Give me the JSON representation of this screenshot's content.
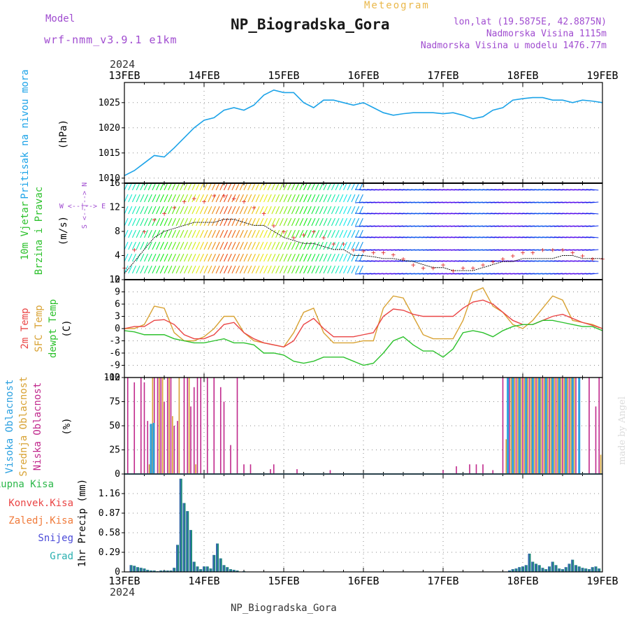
{
  "header": {
    "model_label": "Model",
    "model_name": "wrf-nmm_v3.9.1 e1km",
    "meteogram_label": "Meteogram",
    "station_title": "NP_Biogradska_Gora",
    "lonlat": "lon,lat (19.5875E, 42.8875N)",
    "altitude": "Nadmorska Visina 1115m",
    "model_altitude": "Nadmorska Visina u modelu 1476.77m",
    "year_top": "2024",
    "footer_title": "NP_Biogradska_Gora",
    "year_bottom": "2024",
    "credit": "made by Angel"
  },
  "colors": {
    "pressure": "#1ca3e8",
    "temp2m": "#ea4545",
    "sfc": "#d8a233",
    "dewpt": "#2cc12c",
    "high_cloud": "#2ba0e0",
    "mid_cloud": "#d8a233",
    "low_cloud": "#c0288c",
    "precip_total": "#2cb84a",
    "snow": "#4a4ad8",
    "graupel": "#2ab0b0",
    "model_text": "#a04cd0"
  },
  "chart_data": [
    {
      "id": "pressure",
      "type": "line",
      "ylabel": [
        "Pritisak na nivou mora",
        "(hPa)"
      ],
      "ylim": [
        1009,
        1029
      ],
      "yticks": [
        1010,
        1015,
        1020,
        1025
      ],
      "xlim": [
        0,
        144
      ],
      "x_tick_labels": [
        "13FEB",
        "14FEB",
        "15FEB",
        "16FEB",
        "17FEB",
        "18FEB",
        "19FEB"
      ],
      "grid": true,
      "series": [
        {
          "key": "pressure",
          "x": [
            0,
            3,
            6,
            9,
            12,
            15,
            18,
            21,
            24,
            27,
            30,
            33,
            36,
            39,
            42,
            45,
            48,
            51,
            54,
            57,
            60,
            63,
            66,
            69,
            72,
            75,
            78,
            81,
            84,
            87,
            90,
            93,
            96,
            99,
            102,
            105,
            108,
            111,
            114,
            117,
            120,
            123,
            126,
            129,
            132,
            135,
            138,
            141,
            144
          ],
          "y": [
            1010.5,
            1011.5,
            1013,
            1014.5,
            1014.2,
            1016,
            1018,
            1020,
            1021.5,
            1022,
            1023.5,
            1024,
            1023.5,
            1024.5,
            1026.5,
            1027.5,
            1027,
            1027,
            1025,
            1024,
            1025.5,
            1025.5,
            1025,
            1024.5,
            1025,
            1024,
            1023,
            1022.5,
            1022.8,
            1023,
            1023,
            1023,
            1022.8,
            1023,
            1022.5,
            1021.8,
            1022.2,
            1023.5,
            1024,
            1025.5,
            1025.8,
            1026,
            1026,
            1025.5,
            1025.5,
            1025,
            1025.5,
            1025.3,
            1025
          ]
        }
      ]
    },
    {
      "id": "wind",
      "type": "barbs",
      "ylabel": [
        "10m Vjetar",
        "Brzina i Pravac",
        "(m/s)"
      ],
      "ylim": [
        0,
        16
      ],
      "yticks": [
        0,
        4,
        8,
        12,
        16
      ],
      "xlim": [
        0,
        144
      ],
      "compass_label": "W <--|--> E",
      "compass_label_vertical": "S <--|--> N",
      "series": [
        {
          "name": "wind speed",
          "x": [
            0,
            3,
            6,
            9,
            12,
            15,
            18,
            21,
            24,
            27,
            30,
            33,
            36,
            39,
            42,
            45,
            48,
            51,
            54,
            57,
            60,
            63,
            66,
            69,
            72,
            75,
            78,
            81,
            84,
            87,
            90,
            93,
            96,
            99,
            102,
            105,
            108,
            111,
            114,
            117,
            120,
            123,
            126,
            129,
            132,
            135,
            138,
            141,
            144
          ],
          "y": [
            1,
            3,
            5,
            7,
            8,
            8.5,
            9,
            9.5,
            9.5,
            9.5,
            10,
            10,
            9.5,
            9,
            9,
            8,
            7,
            6.5,
            6,
            6,
            5.5,
            5,
            5,
            4,
            4,
            3.8,
            3.5,
            3.5,
            3.2,
            3,
            2.5,
            2,
            2,
            1.5,
            1.5,
            1.5,
            2,
            2.5,
            3,
            3,
            3.5,
            3.5,
            3.5,
            3.5,
            4,
            4,
            3.5,
            3.5,
            3.5
          ]
        },
        {
          "name": "gust",
          "x": [
            0,
            3,
            6,
            9,
            12,
            15,
            18,
            21,
            24,
            27,
            30,
            33,
            36,
            39,
            42,
            45,
            48,
            51,
            54,
            57,
            60,
            63,
            66,
            69,
            72,
            75,
            78,
            81,
            84,
            87,
            90,
            93,
            96,
            99,
            102,
            105,
            108,
            111,
            114,
            117,
            120,
            123,
            126,
            129,
            132,
            135,
            138,
            141,
            144
          ],
          "y": [
            2,
            5,
            8,
            10,
            11,
            12,
            13,
            13.5,
            13,
            14,
            14,
            13.5,
            13,
            12,
            11,
            9,
            8,
            7,
            7.5,
            8,
            7,
            6,
            6,
            5,
            4.8,
            4.5,
            4.5,
            4.2,
            3.5,
            2.5,
            2,
            2,
            2.5,
            1.5,
            2,
            2,
            2.5,
            3,
            3.5,
            4,
            4.5,
            4.5,
            5,
            5,
            5,
            4.5,
            4,
            3.5,
            3.5
          ]
        }
      ]
    },
    {
      "id": "temperature",
      "type": "line",
      "ylabel": [
        "2m Temp",
        "SFC Temp",
        "dewpt Temp",
        "(C)"
      ],
      "ylim": [
        -12,
        12
      ],
      "yticks": [
        -12,
        -9,
        -6,
        -3,
        0,
        3,
        6,
        9,
        12
      ],
      "xlim": [
        0,
        144
      ],
      "grid": true,
      "series": [
        {
          "key": "sfc",
          "x": [
            0,
            3,
            6,
            9,
            12,
            15,
            18,
            21,
            24,
            27,
            30,
            33,
            36,
            39,
            42,
            45,
            48,
            51,
            54,
            57,
            60,
            63,
            66,
            69,
            72,
            75,
            78,
            81,
            84,
            87,
            90,
            93,
            96,
            99,
            102,
            105,
            108,
            111,
            114,
            117,
            120,
            123,
            126,
            129,
            132,
            135,
            138,
            141,
            144
          ],
          "y": [
            0,
            0,
            1,
            5.5,
            5,
            -1,
            -3,
            -3,
            -2,
            0,
            3,
            3,
            -1,
            -3,
            -3.5,
            -4,
            -4.5,
            -1,
            4,
            5,
            -1,
            -3.5,
            -3.5,
            -3.5,
            -3,
            -3,
            5,
            8,
            7.5,
            3,
            -1.5,
            -2.5,
            -2.5,
            -2.5,
            2,
            9,
            10,
            5.5,
            4,
            1,
            0,
            2,
            5,
            8,
            7,
            2,
            1.5,
            1,
            0
          ]
        },
        {
          "key": "temp2m",
          "x": [
            0,
            3,
            6,
            9,
            12,
            15,
            18,
            21,
            24,
            27,
            30,
            33,
            36,
            39,
            42,
            45,
            48,
            51,
            54,
            57,
            60,
            63,
            66,
            69,
            72,
            75,
            78,
            81,
            84,
            87,
            90,
            93,
            96,
            99,
            102,
            105,
            108,
            111,
            114,
            117,
            120,
            123,
            126,
            129,
            132,
            135,
            138,
            141,
            144
          ],
          "y": [
            0,
            0.5,
            0.5,
            2,
            2.2,
            1,
            -1.5,
            -2.5,
            -2.5,
            -1.5,
            1,
            1.5,
            -1,
            -2.5,
            -3.5,
            -4,
            -4.5,
            -3,
            1,
            2.5,
            0,
            -2,
            -2,
            -2,
            -1.5,
            -1,
            3,
            4.8,
            4.5,
            3.5,
            3,
            3,
            3,
            3,
            5,
            6.5,
            7,
            6,
            4,
            2,
            1,
            1,
            2,
            3,
            3.5,
            2.5,
            1.5,
            0.8,
            0
          ]
        },
        {
          "key": "dewpt",
          "x": [
            0,
            3,
            6,
            9,
            12,
            15,
            18,
            21,
            24,
            27,
            30,
            33,
            36,
            39,
            42,
            45,
            48,
            51,
            54,
            57,
            60,
            63,
            66,
            69,
            72,
            75,
            78,
            81,
            84,
            87,
            90,
            93,
            96,
            99,
            102,
            105,
            108,
            111,
            114,
            117,
            120,
            123,
            126,
            129,
            132,
            135,
            138,
            141,
            144
          ],
          "y": [
            -0.5,
            -0.8,
            -1.5,
            -1.5,
            -1.5,
            -2.5,
            -3,
            -3.5,
            -3.5,
            -3,
            -2.5,
            -3.5,
            -3.5,
            -4,
            -6,
            -6,
            -6.5,
            -8,
            -8.5,
            -8,
            -7,
            -7,
            -7,
            -8,
            -9,
            -8.5,
            -6,
            -3,
            -2,
            -4,
            -5.5,
            -5.5,
            -7,
            -5,
            -1,
            -0.5,
            -1,
            -2,
            -0.5,
            0.5,
            1,
            1,
            2,
            2,
            1.5,
            1,
            0.5,
            0.5,
            -0.5
          ]
        }
      ]
    },
    {
      "id": "cloud",
      "type": "bar",
      "ylabel": [
        "Visoka Oblacnost",
        "Srednja Oblacnost",
        "Niska Oblacnost",
        "(%)"
      ],
      "ylim": [
        0,
        100
      ],
      "yticks": [
        0,
        25,
        50,
        75,
        100
      ],
      "xlim": [
        0,
        144
      ],
      "grid": true,
      "series": [
        {
          "key": "low_cloud",
          "x": [
            1,
            3,
            5,
            6,
            7,
            9,
            10,
            11,
            12,
            13,
            14,
            15,
            16,
            18,
            19,
            20,
            21,
            22,
            23,
            25,
            27,
            29,
            30,
            32,
            34,
            36,
            38,
            44,
            45,
            52,
            62,
            96,
            100,
            104,
            106,
            108,
            111,
            114,
            116,
            118,
            120,
            122,
            124,
            126,
            128,
            130,
            132,
            134,
            136,
            140,
            142,
            143
          ],
          "y": [
            100,
            95,
            100,
            95,
            55,
            100,
            100,
            100,
            75,
            100,
            100,
            50,
            55,
            100,
            100,
            70,
            90,
            100,
            100,
            100,
            100,
            90,
            75,
            30,
            100,
            10,
            10,
            5,
            10,
            5,
            4,
            4,
            8,
            10,
            10,
            10,
            4,
            100,
            100,
            100,
            100,
            100,
            100,
            100,
            100,
            100,
            100,
            100,
            100,
            100,
            70,
            100
          ]
        },
        {
          "key": "mid_cloud",
          "x": [
            7.5,
            8.5,
            10.5,
            11.5,
            13.5,
            14.5,
            16.5,
            19.5,
            21.5,
            115,
            116.5,
            117.5,
            118.5,
            119.5,
            120.5,
            121.5,
            122.5,
            123.5,
            124.5,
            125.5,
            126.5,
            127.5,
            128.5,
            129.5,
            130.5,
            131.5,
            132.5,
            133.5,
            134.5,
            135.5,
            143.5
          ],
          "y": [
            10,
            100,
            100,
            100,
            100,
            60,
            100,
            100,
            10,
            36,
            100,
            100,
            100,
            100,
            100,
            100,
            100,
            100,
            100,
            100,
            100,
            100,
            100,
            100,
            100,
            100,
            100,
            100,
            100,
            100,
            20
          ]
        },
        {
          "key": "high_cloud",
          "x": [
            8,
            8.8,
            115.5,
            117,
            119,
            121,
            123,
            125,
            127,
            129,
            131,
            133,
            135,
            137
          ],
          "y": [
            52,
            53,
            100,
            100,
            100,
            100,
            100,
            100,
            100,
            100,
            100,
            100,
            100,
            100
          ]
        }
      ]
    },
    {
      "id": "precip",
      "type": "bar",
      "ylabel": [
        "1hr Precip (mm)"
      ],
      "legend": [
        "Ukupna Kisa",
        "Konvek.Kisa",
        "Zaledj.Kisa",
        "Snijeg",
        "Grad"
      ],
      "ylim": [
        0,
        1.45
      ],
      "yticks": [
        0,
        0.29,
        0.58,
        0.87,
        1.16
      ],
      "xlim": [
        0,
        144
      ],
      "x_tick_labels": [
        "13FEB",
        "14FEB",
        "15FEB",
        "16FEB",
        "17FEB",
        "18FEB",
        "19FEB"
      ],
      "grid": true,
      "series": [
        {
          "key": "graupel",
          "x": [
            2,
            3,
            4,
            5,
            6,
            7,
            8,
            9,
            10,
            11,
            12,
            13,
            14,
            15,
            16,
            17,
            18,
            19,
            20,
            21,
            22,
            23,
            24,
            25,
            26,
            27,
            28,
            29,
            30,
            31,
            32,
            33,
            34,
            36,
            116,
            117,
            118,
            119,
            120,
            121,
            122,
            123,
            124,
            125,
            126,
            127,
            128,
            129,
            130,
            131,
            132,
            133,
            134,
            135,
            136,
            137,
            138,
            139,
            140,
            141,
            142,
            143
          ],
          "y": [
            0.1,
            0.09,
            0.07,
            0.06,
            0.05,
            0.03,
            0.02,
            0.02,
            0.01,
            0.02,
            0.02,
            0.02,
            0.02,
            0.06,
            0.4,
            1.38,
            1.02,
            0.9,
            0.62,
            0.15,
            0.08,
            0.04,
            0.08,
            0.08,
            0.05,
            0.25,
            0.42,
            0.2,
            0.1,
            0.07,
            0.04,
            0.03,
            0.02,
            0.01,
            0.02,
            0.04,
            0.05,
            0.07,
            0.08,
            0.1,
            0.27,
            0.15,
            0.12,
            0.1,
            0.06,
            0.04,
            0.08,
            0.15,
            0.1,
            0.05,
            0.04,
            0.07,
            0.12,
            0.18,
            0.1,
            0.08,
            0.06,
            0.05,
            0.04,
            0.07,
            0.08,
            0.05
          ]
        }
      ]
    }
  ]
}
